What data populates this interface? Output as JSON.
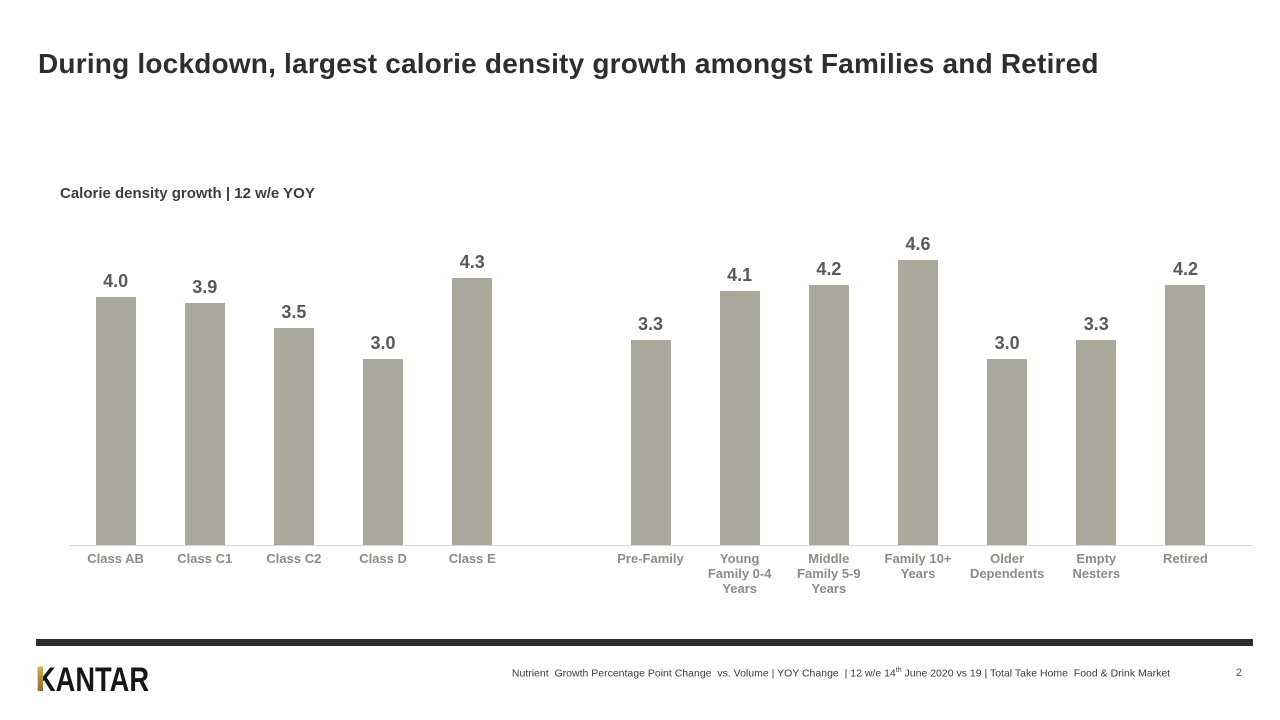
{
  "slide": {
    "title": "During lockdown, largest calorie density growth amongst Families and Retired",
    "page_number": "2"
  },
  "chart_data": {
    "type": "bar",
    "title": "Calorie density growth | 12 w/e YOY",
    "categories": [
      "Class AB",
      "Class C1",
      "Class C2",
      "Class D",
      "Class E",
      null,
      "Pre-Family",
      "Young\nFamily 0-4\nYears",
      "Middle\nFamily 5-9\nYears",
      "Family 10+\nYears",
      "Older\nDependents",
      "Empty\nNesters",
      "Retired"
    ],
    "values": [
      4.0,
      3.9,
      3.5,
      3.0,
      4.3,
      null,
      3.3,
      4.1,
      4.2,
      4.6,
      3.0,
      3.3,
      4.2
    ],
    "value_labels": [
      "4.0",
      "3.9",
      "3.5",
      "3.0",
      "4.3",
      null,
      "3.3",
      "4.1",
      "4.2",
      "4.6",
      "3.0",
      "3.3",
      "4.2"
    ],
    "ylim": [
      0,
      5
    ],
    "grid": false,
    "legend": false,
    "data_labels_position": "above-bar",
    "bar_color": "#a9a89a",
    "value_label_color": "#595959",
    "category_label_color": "#8c8c86",
    "baseline_color": "#d9d9d9"
  },
  "footer": {
    "logo_text": "KANTAR",
    "logo_color": "#161616",
    "logo_accent_color": "#c9992e",
    "rule_color": "#2e2e2e",
    "footnote_part1": "Nutrient  Growth Percentage Point Change  vs. Volume | YOY Change  | 12 w/e 14",
    "footnote_sup": "th",
    "footnote_part2": " June 2020 vs 19 | Total Take Home  Food & Drink Market"
  }
}
